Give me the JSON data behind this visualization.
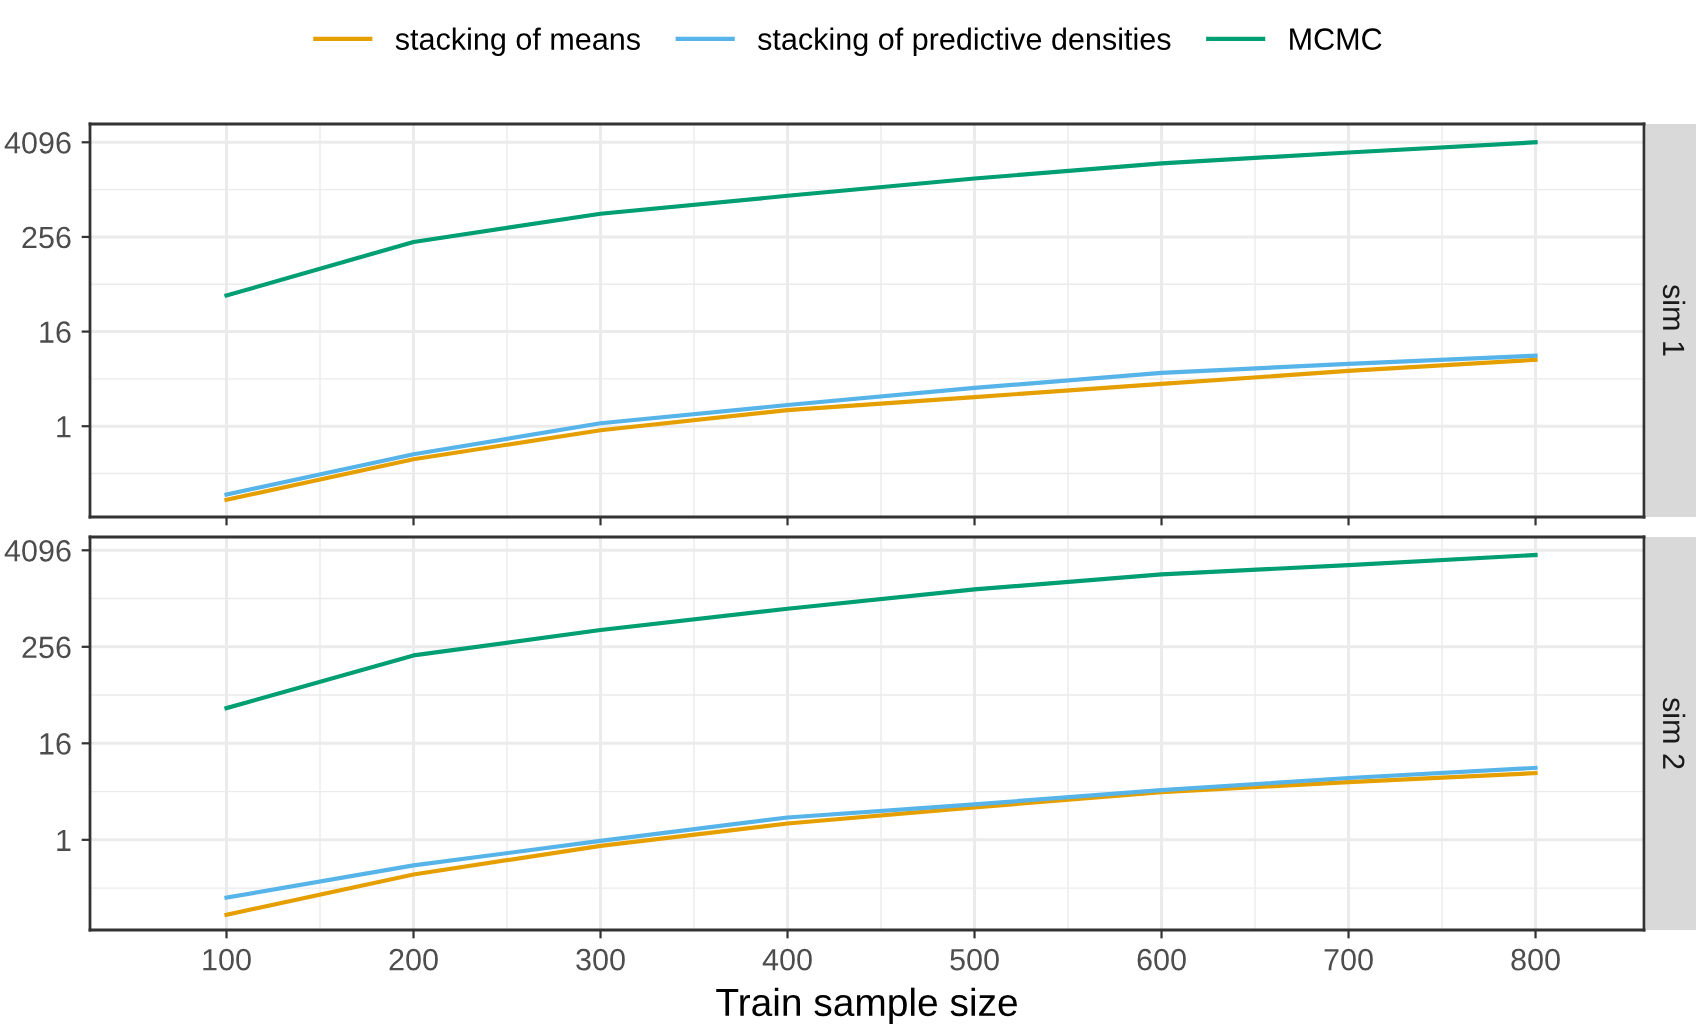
{
  "chart_data": [
    {
      "type": "line",
      "annotations": [
        "sim 1"
      ],
      "x": [
        100,
        200,
        300,
        400,
        500,
        600,
        700,
        800
      ],
      "log": "y",
      "xlim": [
        27,
        858
      ],
      "ylim": [
        0.07,
        7000
      ],
      "yticks": [
        1,
        16,
        256,
        4096
      ],
      "xticks": [
        100,
        200,
        300,
        400,
        500,
        600,
        700,
        800
      ],
      "tick_labels": "y",
      "grid": true,
      "legend": "top",
      "line_style": "solid",
      "marker": "none",
      "series": [
        {
          "name": "stacking of means",
          "color": "#e69f00",
          "values": [
            0.116,
            0.38,
            0.89,
            1.6,
            2.35,
            3.45,
            5.06,
            7.0
          ]
        },
        {
          "name": "stacking of predictive densities",
          "color": "#56b4e9",
          "values": [
            0.135,
            0.44,
            1.09,
            1.86,
            3.07,
            4.78,
            6.2,
            7.9
          ]
        },
        {
          "name": "MCMC",
          "color": "#009e73",
          "values": [
            46,
            221,
            505,
            855,
            1418,
            2210,
            3040,
            4096
          ]
        }
      ]
    },
    {
      "type": "line",
      "annotations": [
        "sim 2"
      ],
      "xlabel": "Train sample size",
      "x": [
        100,
        200,
        300,
        400,
        500,
        600,
        700,
        800
      ],
      "log": "y",
      "xlim": [
        27,
        858
      ],
      "ylim": [
        0.075,
        6000
      ],
      "yticks": [
        1,
        16,
        256,
        4096
      ],
      "xticks": [
        100,
        200,
        300,
        400,
        500,
        600,
        700,
        800
      ],
      "grid": true,
      "line_style": "solid",
      "marker": "none",
      "series": [
        {
          "color": "#e69f00",
          "values": [
            0.116,
            0.37,
            0.84,
            1.6,
            2.54,
            3.93,
            5.25,
            6.8
          ]
        },
        {
          "color": "#56b4e9",
          "values": [
            0.19,
            0.48,
            0.97,
            1.9,
            2.77,
            4.17,
            5.9,
            7.9
          ]
        },
        {
          "color": "#009e73",
          "values": [
            44,
            200,
            415,
            765,
            1330,
            2050,
            2680,
            3580
          ]
        }
      ]
    }
  ]
}
